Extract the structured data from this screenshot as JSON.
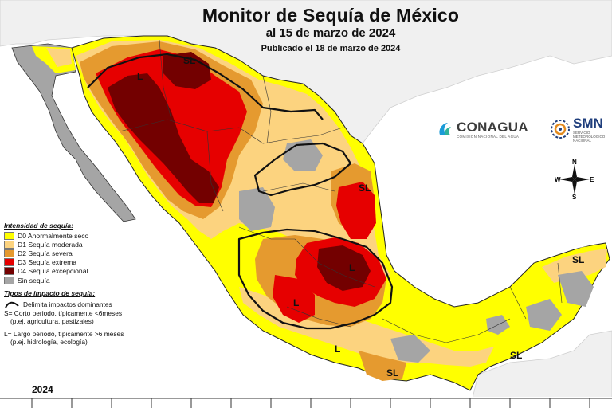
{
  "title": "Monitor de Sequía de México",
  "subtitle": "al 15 de marzo de 2024",
  "published": "Publicado el 18 de marzo de 2024",
  "logos": {
    "conagua": "CONAGUA",
    "conagua_sub": "COMISIÓN NACIONAL DEL AGUA",
    "smn": "SMN",
    "smn_sub_1": "SERVICIO",
    "smn_sub_2": "METEOROLÓGICO",
    "smn_sub_3": "NACIONAL"
  },
  "compass": {
    "n": "N",
    "s": "S",
    "e": "E",
    "w": "W"
  },
  "legend": {
    "title": "Intensidad de sequía:",
    "items": [
      {
        "label": "D0 Anormalmente seco",
        "color": "#ffff00"
      },
      {
        "label": "D1 Sequía moderada",
        "color": "#fcd37f"
      },
      {
        "label": "D2 Sequía severa",
        "color": "#e59a2f"
      },
      {
        "label": "D3 Sequía extrema",
        "color": "#e60000"
      },
      {
        "label": "D4 Sequía excepcional",
        "color": "#730000"
      },
      {
        "label": "Sin sequía",
        "color": "#a5a5a5"
      }
    ],
    "impact_title": "Tipos de impacto de sequía:",
    "impact_line": "Delimita impactos dominantes",
    "short_term": "S= Corto periodo, típicamente <6meses",
    "short_term_example": "(p.ej. agricultura, pastizales)",
    "long_term": "L= Largo periodo, típicamente >6 meses",
    "long_term_example": "(p.ej. hidrología, ecología)"
  },
  "map_labels": {
    "sl": "SL",
    "l": "L",
    "s": "S"
  },
  "year": "2024",
  "colors": {
    "land_background": "#f2f2f2",
    "water": "#ffffff",
    "d0": "#ffff00",
    "d1": "#fcd37f",
    "d2": "#e59a2f",
    "d3": "#e60000",
    "d4": "#730000",
    "none": "#a5a5a5"
  }
}
